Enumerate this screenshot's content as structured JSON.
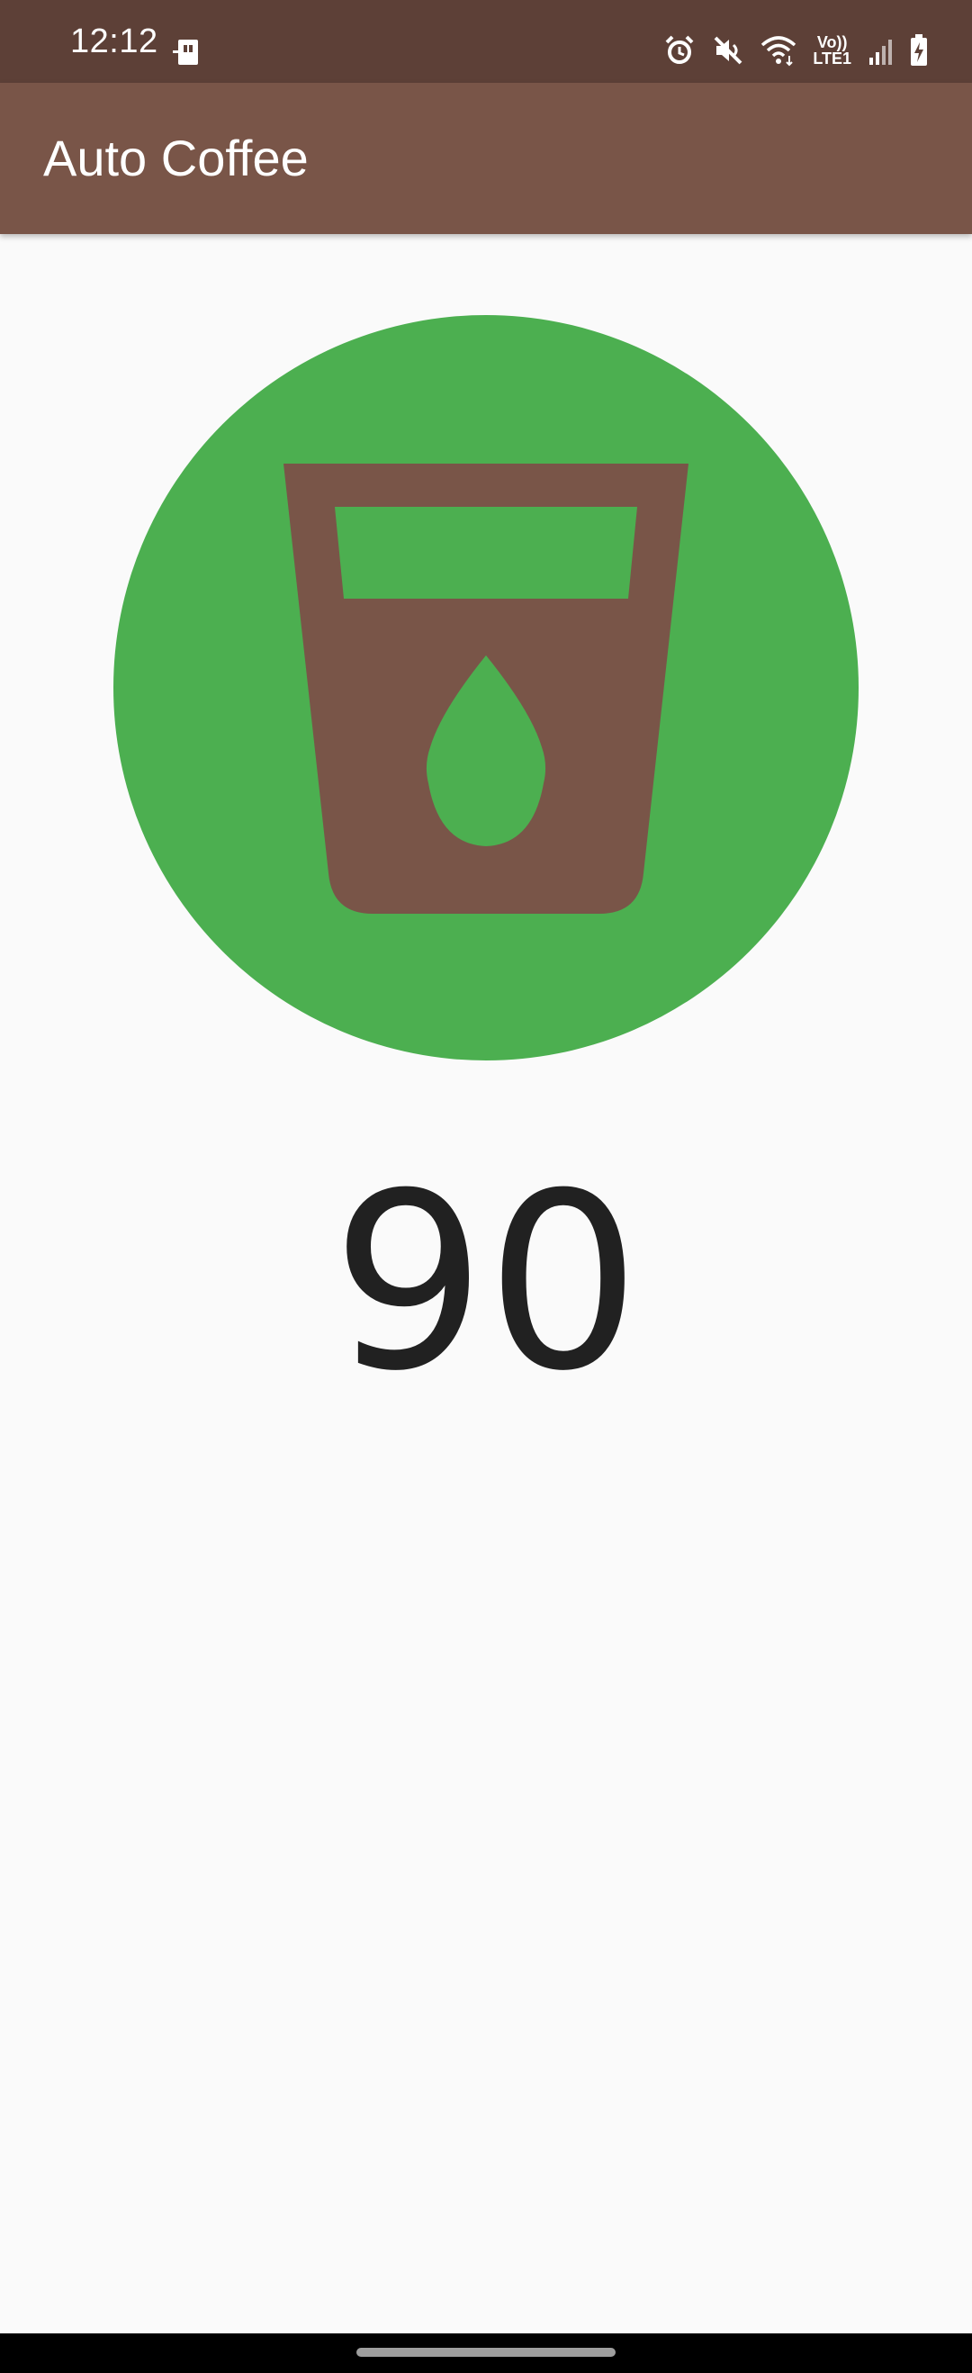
{
  "status_bar": {
    "time": "12:12",
    "network_label_top": "Vo))",
    "network_label_bottom": "LTE1",
    "icons": [
      "sim-card-icon",
      "alarm-icon",
      "mute-icon",
      "wifi-icon",
      "lte-icon",
      "signal-icon",
      "battery-charging-icon"
    ]
  },
  "app_bar": {
    "title": "Auto Coffee"
  },
  "main": {
    "icon": "coffee-cup-icon",
    "count": "90"
  },
  "colors": {
    "status_bar": "#5D4037",
    "app_bar": "#795548",
    "circle": "#4CAF50",
    "cup": "#795548",
    "background": "#FAFAFA",
    "text": "#212121"
  }
}
